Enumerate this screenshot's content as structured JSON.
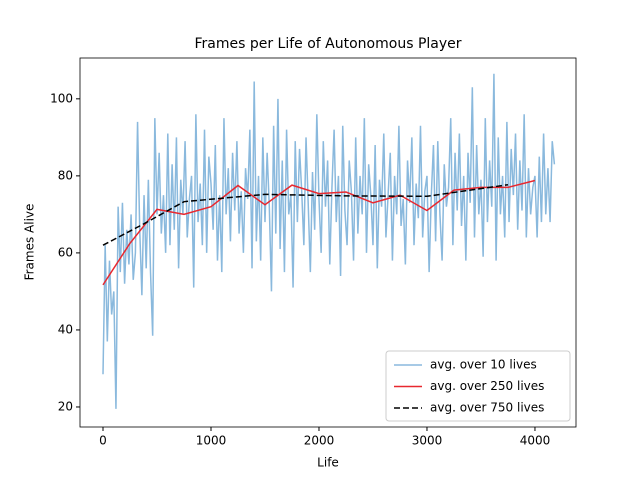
{
  "chart_data": {
    "type": "line",
    "title": "Frames per Life of Autonomous Player",
    "xlabel": "Life",
    "ylabel": "Frames Alive",
    "xlim": [
      -213,
      4380
    ],
    "ylim": [
      14.8,
      110.6
    ],
    "xticks": [
      0,
      1000,
      2000,
      3000,
      4000
    ],
    "yticks": [
      20,
      40,
      60,
      80,
      100
    ],
    "legend": "lower right",
    "series": [
      {
        "name": "avg. over 10 lives",
        "color": "#8ab9dd",
        "style": "solid",
        "x": [
          0,
          20,
          40,
          60,
          80,
          100,
          120,
          140,
          160,
          180,
          200,
          220,
          240,
          260,
          280,
          300,
          320,
          340,
          360,
          380,
          400,
          420,
          440,
          460,
          480,
          500,
          520,
          540,
          560,
          580,
          600,
          620,
          640,
          660,
          680,
          700,
          720,
          740,
          760,
          780,
          800,
          820,
          840,
          860,
          880,
          900,
          920,
          940,
          960,
          980,
          1000,
          1020,
          1040,
          1060,
          1080,
          1100,
          1120,
          1140,
          1160,
          1180,
          1200,
          1220,
          1240,
          1260,
          1280,
          1300,
          1320,
          1340,
          1360,
          1380,
          1400,
          1420,
          1440,
          1460,
          1480,
          1500,
          1520,
          1540,
          1560,
          1580,
          1600,
          1620,
          1640,
          1660,
          1680,
          1700,
          1720,
          1740,
          1760,
          1780,
          1800,
          1820,
          1840,
          1860,
          1880,
          1900,
          1920,
          1940,
          1960,
          1980,
          2000,
          2020,
          2040,
          2060,
          2080,
          2100,
          2120,
          2140,
          2160,
          2180,
          2200,
          2220,
          2240,
          2260,
          2280,
          2300,
          2320,
          2340,
          2360,
          2380,
          2400,
          2420,
          2440,
          2460,
          2480,
          2500,
          2520,
          2540,
          2560,
          2580,
          2600,
          2620,
          2640,
          2660,
          2680,
          2700,
          2720,
          2740,
          2760,
          2780,
          2800,
          2820,
          2840,
          2860,
          2880,
          2900,
          2920,
          2940,
          2960,
          2980,
          3000,
          3020,
          3040,
          3060,
          3080,
          3100,
          3120,
          3140,
          3160,
          3180,
          3200,
          3220,
          3240,
          3260,
          3280,
          3300,
          3320,
          3340,
          3360,
          3380,
          3400,
          3420,
          3440,
          3460,
          3480,
          3500,
          3520,
          3540,
          3560,
          3580,
          3600,
          3620,
          3640,
          3660,
          3680,
          3700,
          3720,
          3740,
          3760,
          3780,
          3800,
          3820,
          3840,
          3860,
          3880,
          3900,
          3920,
          3940,
          3960,
          3980,
          4000,
          4020,
          4040,
          4060,
          4080,
          4100,
          4120,
          4140,
          4160,
          4180
        ],
        "values": [
          28.5,
          62,
          37,
          58,
          44,
          50,
          19.5,
          72,
          55,
          73,
          52,
          66,
          57,
          70,
          53,
          60,
          94,
          66,
          49,
          75,
          56,
          79,
          55,
          38.5,
          95,
          70,
          86,
          65,
          75,
          60,
          91,
          62,
          83,
          66,
          90,
          56,
          79,
          70,
          89,
          64,
          74,
          80,
          51,
          96,
          68,
          78,
          62,
          92,
          60,
          85,
          78,
          66,
          88,
          58,
          75,
          55,
          95,
          70,
          82,
          63,
          86,
          71,
          89,
          65,
          76,
          60,
          82,
          74,
          92,
          56,
          104.5,
          63,
          80,
          58,
          90,
          68,
          86,
          72,
          50,
          93,
          65,
          100,
          61,
          84,
          55,
          92,
          70,
          75,
          51,
          89,
          68,
          87,
          76,
          62,
          90,
          73,
          55,
          81,
          66,
          96,
          74,
          60,
          89,
          72,
          84,
          57,
          77,
          92,
          68,
          80,
          54,
          93,
          71,
          62,
          84,
          76,
          58,
          90,
          65,
          80,
          70,
          95,
          60,
          83,
          75,
          62,
          88,
          56,
          79,
          72,
          91,
          64,
          75,
          86,
          58,
          80,
          70,
          93,
          67,
          74,
          57,
          84,
          73,
          90,
          62,
          78,
          69,
          93,
          64,
          76,
          80,
          55,
          75,
          88,
          63,
          89,
          70,
          58,
          83,
          72,
          77,
          95,
          62,
          86,
          71,
          91,
          67,
          80,
          58,
          86,
          73,
          103,
          64,
          88,
          70,
          79,
          59,
          95,
          68,
          84,
          72,
          106.5,
          58,
          90,
          70,
          80,
          64,
          94,
          68,
          87,
          75,
          91,
          66,
          84,
          71,
          96,
          64,
          82,
          70,
          77,
          80,
          64,
          85,
          68,
          91,
          70,
          82,
          68,
          89,
          83
        ]
      },
      {
        "name": "avg. over 250 lives",
        "color": "#e8282f",
        "style": "solid",
        "x": [
          0,
          250,
          500,
          750,
          1000,
          1250,
          1500,
          1750,
          2000,
          2250,
          2500,
          2750,
          3000,
          3250,
          3500,
          3750,
          4000
        ],
        "values": [
          51.7,
          62.5,
          71.3,
          70,
          72,
          77.5,
          72.5,
          77.6,
          75.4,
          75.8,
          73,
          75,
          71,
          76.3,
          77,
          77,
          78.8
        ]
      },
      {
        "name": "avg. over 750 lives",
        "color": "#000000",
        "style": "dashed",
        "x": [
          0,
          375,
          750,
          1500,
          2250,
          3000,
          3750
        ],
        "values": [
          62,
          67.5,
          73.3,
          75.2,
          74.8,
          74.7,
          77.7
        ]
      }
    ]
  }
}
